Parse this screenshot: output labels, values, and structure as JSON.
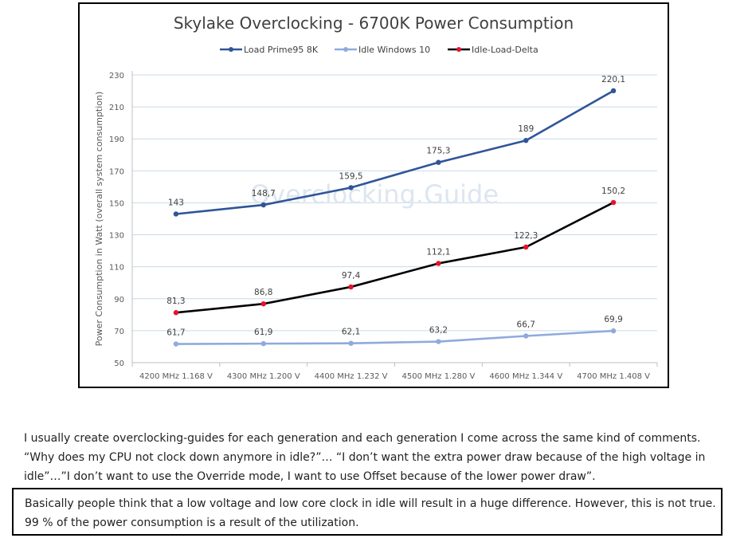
{
  "chart_data": {
    "type": "line",
    "title": "Skylake Overclocking - 6700K Power Consumption",
    "ylabel": "Power Consumption in Watt (overall system consumption)",
    "xlabel": "",
    "watermark": "Overclocking.Guide",
    "categories": [
      "4200 MHz 1.168 V",
      "4300 MHz 1.200 V",
      "4400 MHz 1.232 V",
      "4500 MHz 1.280 V",
      "4600 MHz 1.344 V",
      "4700 MHz 1.408 V"
    ],
    "ylim": [
      50,
      230
    ],
    "yticks": [
      50,
      70,
      90,
      110,
      130,
      150,
      170,
      190,
      210,
      230
    ],
    "grid": true,
    "legend_position": "top",
    "series": [
      {
        "name": "Load Prime95 8K",
        "values": [
          143,
          148.7,
          159.5,
          175.3,
          189,
          220.1
        ],
        "labels": [
          "143",
          "148,7",
          "159,5",
          "175,3",
          "189",
          "220,1"
        ],
        "color": "#2f5597",
        "marker_color": "#2f5597"
      },
      {
        "name": "Idle Windows 10",
        "values": [
          61.7,
          61.9,
          62.1,
          63.2,
          66.7,
          69.9
        ],
        "labels": [
          "61,7",
          "61,9",
          "62,1",
          "63,2",
          "66,7",
          "69,9"
        ],
        "color": "#8faadc",
        "marker_color": "#8faadc"
      },
      {
        "name": "Idle-Load-Delta",
        "values": [
          81.3,
          86.8,
          97.4,
          112.1,
          122.3,
          150.2
        ],
        "labels": [
          "81,3",
          "86,8",
          "97,4",
          "112,1",
          "122,3",
          "150,2"
        ],
        "color": "#000000",
        "marker_color": "#e8112d"
      }
    ]
  },
  "article": {
    "paragraph": "I usually create overclocking-guides for each generation and each generation I come across the same kind of comments. “Why does my CPU not clock down anymore in idle?”… “I don’t want the extra power draw because of the high voltage in idle”…”I don’t want to use the Override mode, I want to use Offset because of the lower power draw”.",
    "highlight": "Basically people think that a low voltage and low core clock in idle will result in a huge difference. However, this is not true. 99 % of the power consumption is a result of the utilization."
  }
}
